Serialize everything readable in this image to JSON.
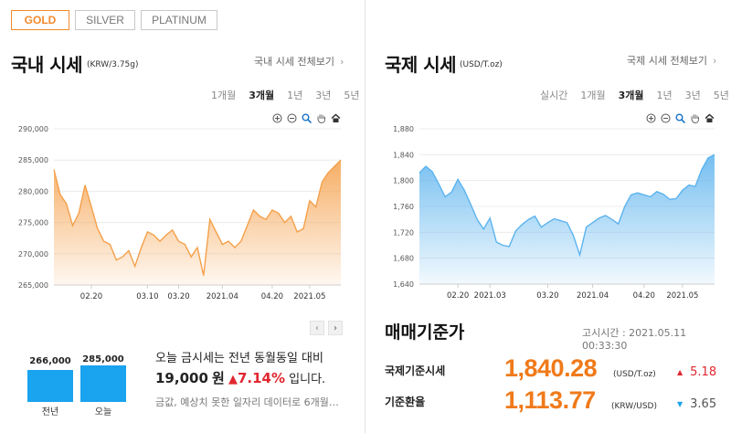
{
  "tabs": [
    {
      "label": "GOLD",
      "active": true
    },
    {
      "label": "SILVER",
      "active": false
    },
    {
      "label": "PLATINUM",
      "active": false
    }
  ],
  "domestic": {
    "title": "국내 시세",
    "unit": "(KRW/3.75g)",
    "view_all": "국내 시세 전체보기",
    "periods": [
      "1개월",
      "3개월",
      "1년",
      "3년",
      "5년"
    ],
    "active_period": "3개월"
  },
  "international": {
    "title": "국제 시세",
    "unit": "(USD/T.oz)",
    "view_all": "국제 시세 전체보기",
    "periods": [
      "실시간",
      "1개월",
      "3개월",
      "1년",
      "3년",
      "5년"
    ],
    "active_period": "3개월"
  },
  "icons": {
    "view_all": "chevron-right-icon",
    "zoom_in": "zoom-in-icon",
    "zoom_out": "zoom-out-icon",
    "magnify": "magnifier-icon",
    "pan": "hand-pan-icon",
    "home": "home-icon",
    "prev": "chevron-left-icon",
    "next": "chevron-right-icon"
  },
  "chart_data": [
    {
      "type": "area",
      "id": "domestic",
      "color": "#f5a04a",
      "x": [
        "02.07",
        "02.09",
        "02.11",
        "02.14",
        "02.16",
        "02.18",
        "02.20",
        "02.22",
        "02.24",
        "02.26",
        "02.28",
        "03.02",
        "03.04",
        "03.06",
        "03.08",
        "03.10",
        "03.12",
        "03.14",
        "03.16",
        "03.18",
        "03.20",
        "03.22",
        "03.24",
        "03.26",
        "03.28",
        "03.30",
        "04.01",
        "04.03",
        "04.05",
        "04.07",
        "04.09",
        "04.11",
        "04.13",
        "04.15",
        "04.17",
        "04.19",
        "04.21",
        "04.23",
        "04.25",
        "04.27",
        "04.29",
        "05.01",
        "05.03",
        "05.05",
        "05.07",
        "05.09",
        "05.11"
      ],
      "values": [
        283500,
        279500,
        278000,
        274500,
        276500,
        281000,
        277500,
        274000,
        272000,
        271500,
        269000,
        269500,
        270500,
        268000,
        271000,
        273500,
        273000,
        272000,
        273000,
        273800,
        272000,
        271500,
        269500,
        271000,
        266500,
        275500,
        273500,
        271500,
        272000,
        271000,
        272000,
        274500,
        277000,
        276000,
        275500,
        277000,
        276500,
        275000,
        276000,
        273500,
        274000,
        278500,
        277500,
        281500,
        283000,
        284000,
        285000
      ],
      "x_ticks": [
        "02.20",
        "03.10",
        "03.20",
        "2021.04",
        "04.20",
        "2021.05"
      ],
      "x_tick_index": [
        6,
        15,
        20,
        27,
        35,
        41
      ],
      "y_ticks": [
        "265,000",
        "270,000",
        "275,000",
        "280,000",
        "285,000",
        "290,000"
      ],
      "ylim": [
        265000,
        290000
      ]
    },
    {
      "type": "area",
      "id": "international",
      "color": "#5cb3ee",
      "x": [
        "02.07",
        "02.09",
        "02.11",
        "02.14",
        "02.16",
        "02.18",
        "02.20",
        "02.22",
        "02.24",
        "02.26",
        "02.28",
        "03.02",
        "03.04",
        "03.06",
        "03.08",
        "03.10",
        "03.12",
        "03.14",
        "03.16",
        "03.18",
        "03.20",
        "03.22",
        "03.24",
        "03.26",
        "03.28",
        "03.30",
        "04.01",
        "04.03",
        "04.05",
        "04.07",
        "04.09",
        "04.11",
        "04.13",
        "04.15",
        "04.17",
        "04.19",
        "04.21",
        "04.23",
        "04.25",
        "04.27",
        "04.29",
        "05.01",
        "05.03",
        "05.05",
        "05.07",
        "05.09",
        "05.11"
      ],
      "values": [
        1812,
        1822,
        1814,
        1795,
        1775,
        1782,
        1802,
        1785,
        1763,
        1740,
        1725,
        1742,
        1705,
        1700,
        1698,
        1722,
        1732,
        1740,
        1745,
        1728,
        1735,
        1741,
        1738,
        1735,
        1715,
        1685,
        1728,
        1735,
        1742,
        1746,
        1740,
        1733,
        1760,
        1778,
        1781,
        1778,
        1775,
        1783,
        1779,
        1771,
        1772,
        1785,
        1793,
        1791,
        1817,
        1835,
        1840
      ],
      "x_ticks": [
        "02.20",
        "2021.03",
        "03.20",
        "2021.04",
        "04.20",
        "2021.05"
      ],
      "x_tick_index": [
        6,
        11,
        20,
        27,
        35,
        41
      ],
      "y_ticks": [
        "1,640",
        "1,680",
        "1,720",
        "1,760",
        "1,800",
        "1,840",
        "1,880"
      ],
      "ylim": [
        1640,
        1880
      ]
    },
    {
      "type": "bar",
      "id": "yoy",
      "color": "#1aa3ee",
      "categories": [
        "전년",
        "오늘"
      ],
      "values": [
        266000,
        285000
      ],
      "value_labels": [
        "266,000",
        "285,000"
      ]
    }
  ],
  "summary": {
    "line1": "오늘 금시세는 전년 동월동일 대비",
    "diff": "19,000",
    "won": "원",
    "arrow": "▲",
    "pct": "7.14%",
    "suffix": "입니다.",
    "note": "금값, 예상치 못한 일자리 데이터로 6개월…"
  },
  "market": {
    "title": "매매기준가",
    "time_label": "고시시간 : 2021.05.11 00:33:30",
    "rows": [
      {
        "label": "국제기준시세",
        "value": "1,840.28",
        "unit": "(USD/T.oz)",
        "arrow": "▲",
        "change": "5.18",
        "dir": "up"
      },
      {
        "label": "기준환율",
        "value": "1,113.77",
        "unit": "(KRW/USD)",
        "arrow": "▼",
        "change": "3.65",
        "dir": "down"
      }
    ]
  }
}
